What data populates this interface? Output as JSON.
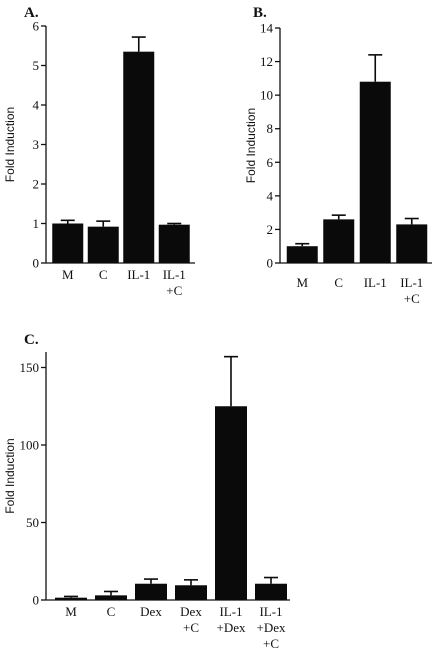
{
  "chart_data": [
    {
      "type": "bar",
      "panel": "A.",
      "ylabel": "Fold Induction",
      "ylim": [
        0,
        6
      ],
      "yticks": [
        0,
        1,
        2,
        3,
        4,
        5,
        6
      ],
      "categories": [
        "M",
        "C",
        "IL-1",
        "IL-1\n+C"
      ],
      "values": [
        1.0,
        0.92,
        5.35,
        0.97
      ],
      "errors": [
        0.08,
        0.14,
        0.37,
        0.03
      ]
    },
    {
      "type": "bar",
      "panel": "B.",
      "ylabel": "Fold Induction",
      "ylim": [
        0,
        14
      ],
      "yticks": [
        0,
        2,
        4,
        6,
        8,
        10,
        12,
        14
      ],
      "categories": [
        "M",
        "C",
        "IL-1",
        "IL-1\n+C"
      ],
      "values": [
        1.0,
        2.6,
        10.8,
        2.3
      ],
      "errors": [
        0.15,
        0.25,
        1.6,
        0.35
      ]
    },
    {
      "type": "bar",
      "panel": "C.",
      "ylabel": "Fold Induction",
      "ylim": [
        0,
        160
      ],
      "yticks": [
        0,
        50,
        100,
        150
      ],
      "categories": [
        "M",
        "C",
        "Dex",
        "Dex\n+C",
        "IL-1\n+Dex",
        "IL-1\n+Dex\n+C"
      ],
      "values": [
        1.5,
        3.0,
        10.5,
        9.5,
        125,
        10.5
      ],
      "errors": [
        0.8,
        2.5,
        3.0,
        3.5,
        32,
        4.0
      ]
    }
  ]
}
